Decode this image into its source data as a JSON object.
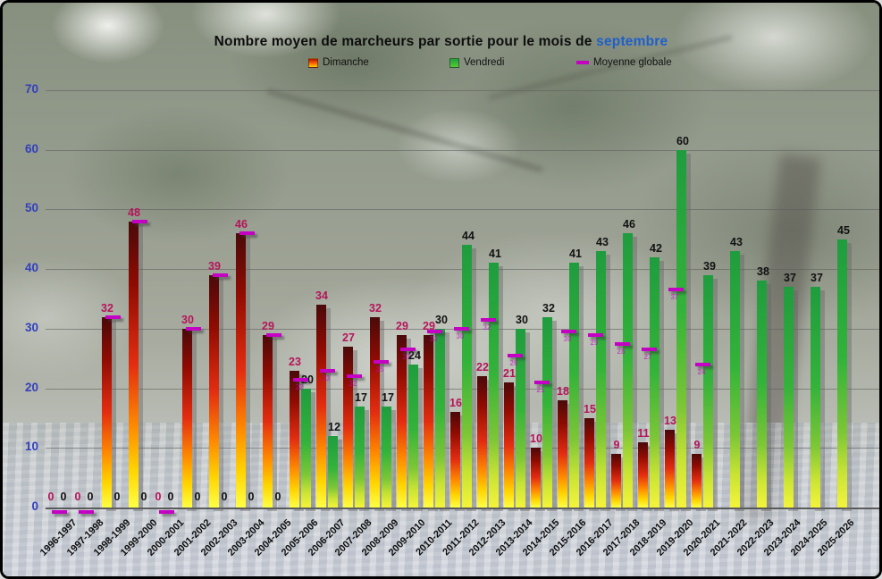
{
  "title": {
    "prefix": "Nombre moyen de marcheurs par sortie pour le mois de ",
    "highlight": "septembre"
  },
  "legend": {
    "dimanche_label": "Dimanche",
    "vendredi_label": "Vendredi",
    "moyenne_label": "Moyenne globale"
  },
  "colors": {
    "title_text": "#0d0d0d",
    "title_highlight": "#1f5fc8",
    "y_axis_labels": "#3340bf",
    "dimanche_value_labels": "#b5145a",
    "vendredi_value_labels": "#111111",
    "moyenne_marker": "#c400c4"
  },
  "chart_data": {
    "type": "bar",
    "title": "Nombre moyen de marcheurs par sortie pour le mois de septembre",
    "legend_position": "top",
    "grid": true,
    "ylim": [
      0,
      70
    ],
    "ytick_interval": 10,
    "categories": [
      "1996-1997",
      "1997-1998",
      "1998-1999",
      "1999-2000",
      "2000-2001",
      "2001-2002",
      "2002-2003",
      "2003-2004",
      "2004-2005",
      "2005-2006",
      "2006-2007",
      "2007-2008",
      "2008-2009",
      "2009-2010",
      "2010-2011",
      "2011-2012",
      "2012-2013",
      "2013-2014",
      "2014-2015",
      "2015-2016",
      "2016-2017",
      "2017-2018",
      "2018-2019",
      "2019-2020",
      "2020-2021",
      "2021-2022",
      "2022-2023",
      "2023-2024",
      "2024-2025",
      "2025-2026"
    ],
    "series": [
      {
        "name": "Dimanche",
        "style": "red-to-yellow-gradient-bar",
        "values": [
          0,
          0,
          32,
          48,
          0,
          30,
          39,
          46,
          29,
          23,
          34,
          27,
          32,
          29,
          29,
          16,
          22,
          21,
          10,
          18,
          15,
          9,
          11,
          13,
          9,
          null,
          null,
          null,
          null,
          null
        ]
      },
      {
        "name": "Vendredi",
        "style": "green-to-yellow-gradient-bar",
        "values": [
          0,
          0,
          0,
          0,
          0,
          0,
          0,
          0,
          0,
          20,
          12,
          17,
          17,
          24,
          30,
          44,
          41,
          30,
          32,
          41,
          43,
          46,
          42,
          60,
          39,
          43,
          38,
          37,
          37,
          45
        ]
      },
      {
        "name": "Moyenne globale",
        "style": "magenta-tick-marker",
        "values": [
          0,
          0,
          32,
          48,
          0,
          30,
          39,
          46,
          29,
          21.5,
          23,
          22,
          24.5,
          26.5,
          29.5,
          30,
          31.5,
          25.5,
          21,
          29.5,
          29,
          27.5,
          26.5,
          36.5,
          24,
          null,
          null,
          null,
          null,
          null
        ]
      }
    ]
  }
}
